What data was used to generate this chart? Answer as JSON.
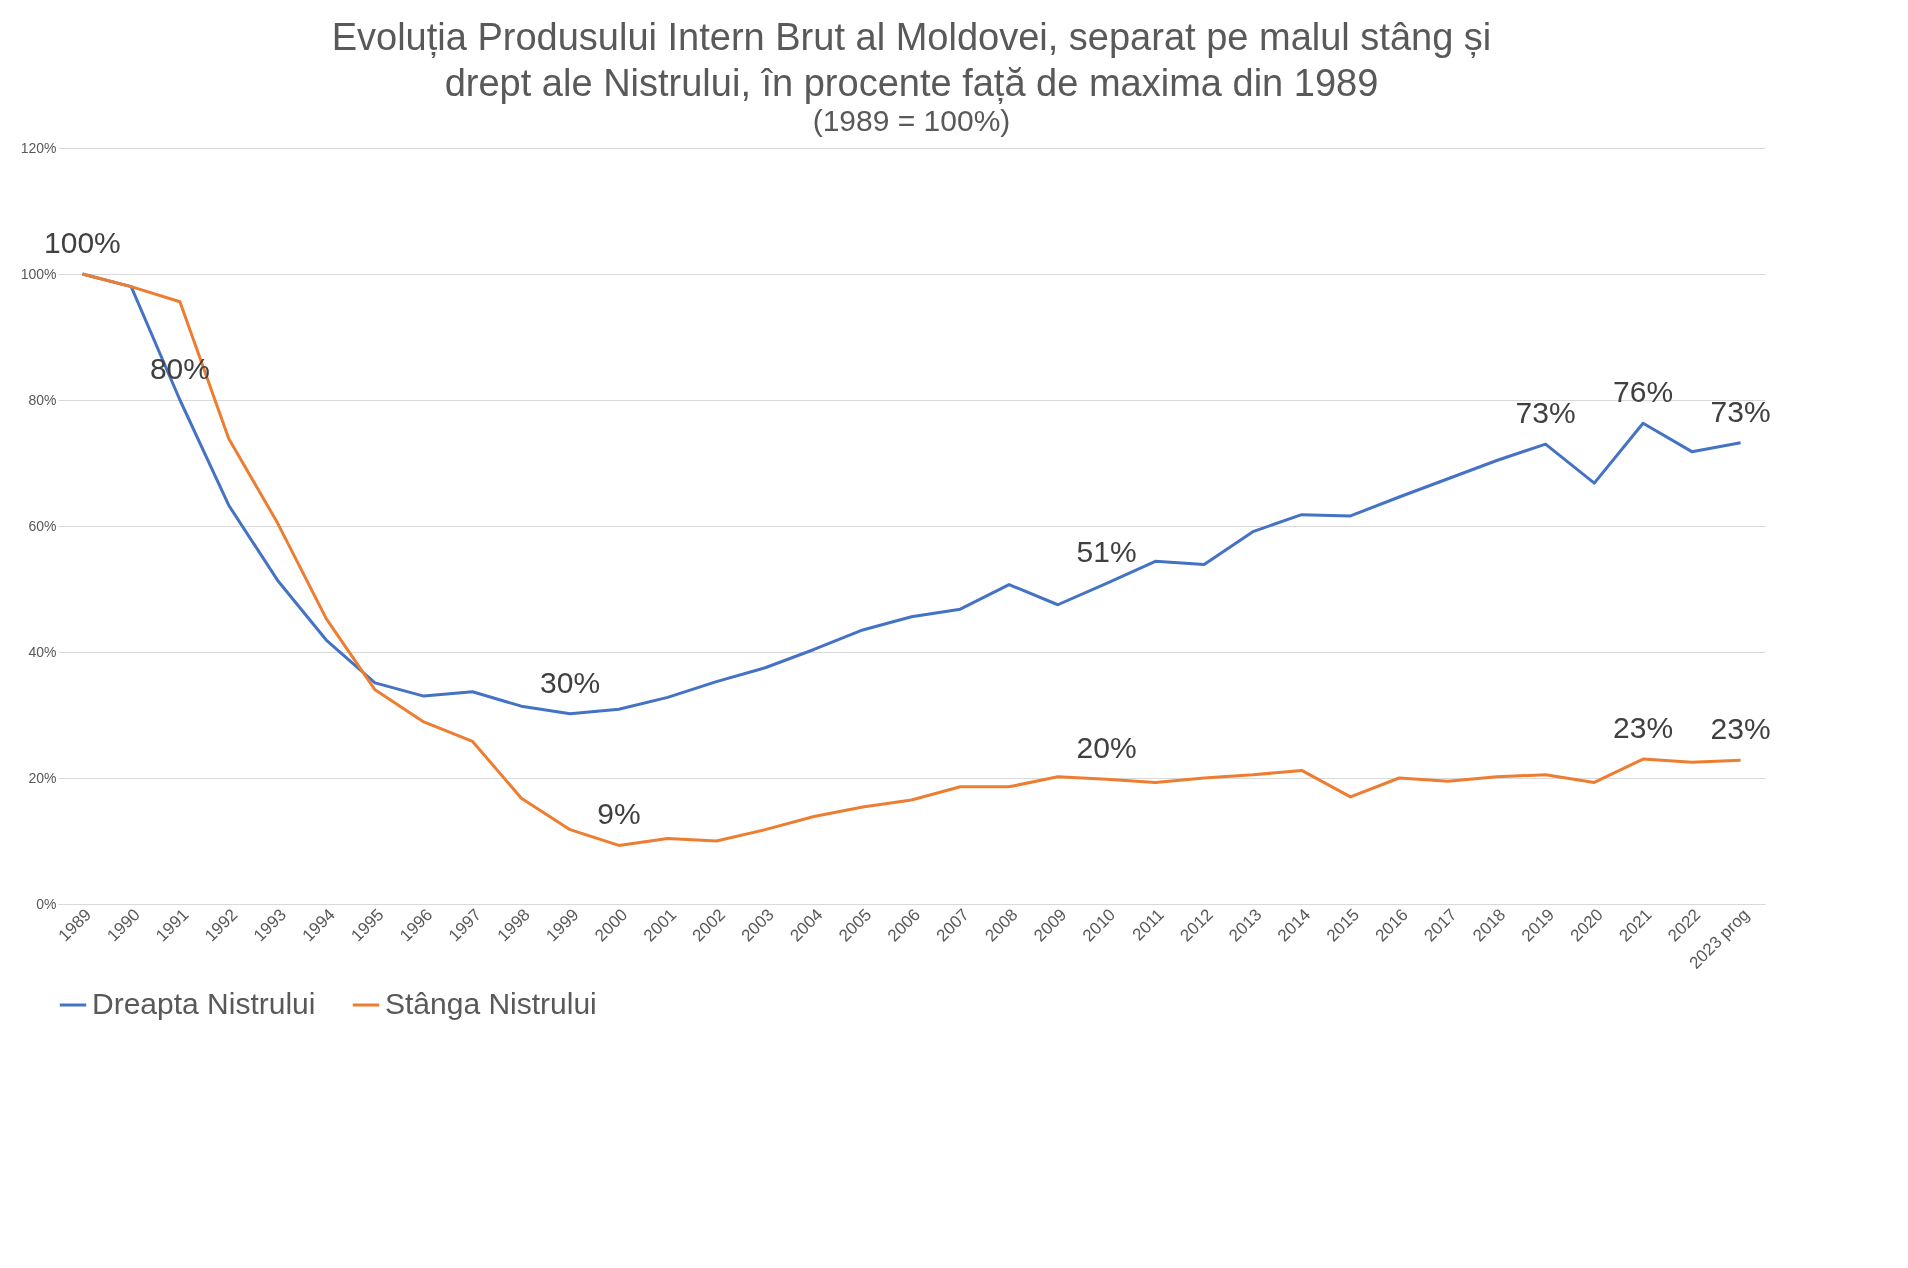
{
  "chart_data": {
    "type": "line",
    "title": "Evoluția Produsului Intern Brut al Moldovei, separat pe malul stâng și drept ale Nistrului, în procente față de maxima din 1989",
    "subtitle": "(1989 = 100%)",
    "categories": [
      "1989",
      "1990",
      "1991",
      "1992",
      "1993",
      "1994",
      "1995",
      "1996",
      "1997",
      "1998",
      "1999",
      "2000",
      "2001",
      "2002",
      "2003",
      "2004",
      "2005",
      "2006",
      "2007",
      "2008",
      "2009",
      "2010",
      "2011",
      "2012",
      "2013",
      "2014",
      "2015",
      "2016",
      "2017",
      "2018",
      "2019",
      "2020",
      "2021",
      "2022",
      "2023 prog"
    ],
    "series": [
      {
        "name": "Dreapta Nistrului",
        "color": "#4472c4",
        "values": [
          100,
          98,
          80,
          63.3,
          51.4,
          41.9,
          35.1,
          33,
          33.7,
          31.4,
          30.2,
          30.9,
          32.8,
          35.3,
          37.5,
          40.4,
          43.5,
          45.6,
          46.8,
          50.7,
          47.5,
          50.9,
          54.4,
          53.9,
          59.1,
          61.8,
          61.6,
          64.6,
          67.5,
          70.4,
          73,
          66.8,
          76.3,
          71.8,
          73.2
        ],
        "value_labels": [
          "100%",
          null,
          "80%",
          null,
          null,
          null,
          null,
          null,
          null,
          null,
          "30%",
          null,
          null,
          null,
          null,
          null,
          null,
          null,
          null,
          null,
          null,
          "51%",
          null,
          null,
          null,
          null,
          null,
          null,
          null,
          null,
          "73%",
          null,
          "76%",
          null,
          "73%"
        ]
      },
      {
        "name": "Stânga Nistrului",
        "color": "#ed7d31",
        "values": [
          100,
          98,
          95.6,
          73.9,
          60.5,
          45.3,
          34,
          28.9,
          25.8,
          16.8,
          11.8,
          9.3,
          10.4,
          10,
          11.8,
          13.9,
          15.4,
          16.5,
          18.6,
          18.6,
          20.2,
          19.8,
          19.3,
          20,
          20.5,
          21.2,
          17,
          20,
          19.5,
          20.2,
          20.5,
          19.3,
          23,
          22.5,
          22.8
        ],
        "value_labels": [
          null,
          null,
          null,
          null,
          null,
          null,
          null,
          null,
          null,
          null,
          null,
          "9%",
          null,
          null,
          null,
          null,
          null,
          null,
          null,
          null,
          null,
          "20%",
          null,
          null,
          null,
          null,
          null,
          null,
          null,
          null,
          null,
          null,
          "23%",
          null,
          "23%"
        ]
      }
    ],
    "ylim": [
      0,
      120
    ],
    "yticks": [
      {
        "value": 0,
        "label": "0%"
      },
      {
        "value": 20,
        "label": "20%"
      },
      {
        "value": 40,
        "label": "40%"
      },
      {
        "value": 60,
        "label": "60%"
      },
      {
        "value": 80,
        "label": "80%"
      },
      {
        "value": 100,
        "label": "100%"
      },
      {
        "value": 120,
        "label": "120%"
      }
    ],
    "grid": "y",
    "legend": "bottom",
    "marker": "none",
    "line_style": "solid"
  }
}
